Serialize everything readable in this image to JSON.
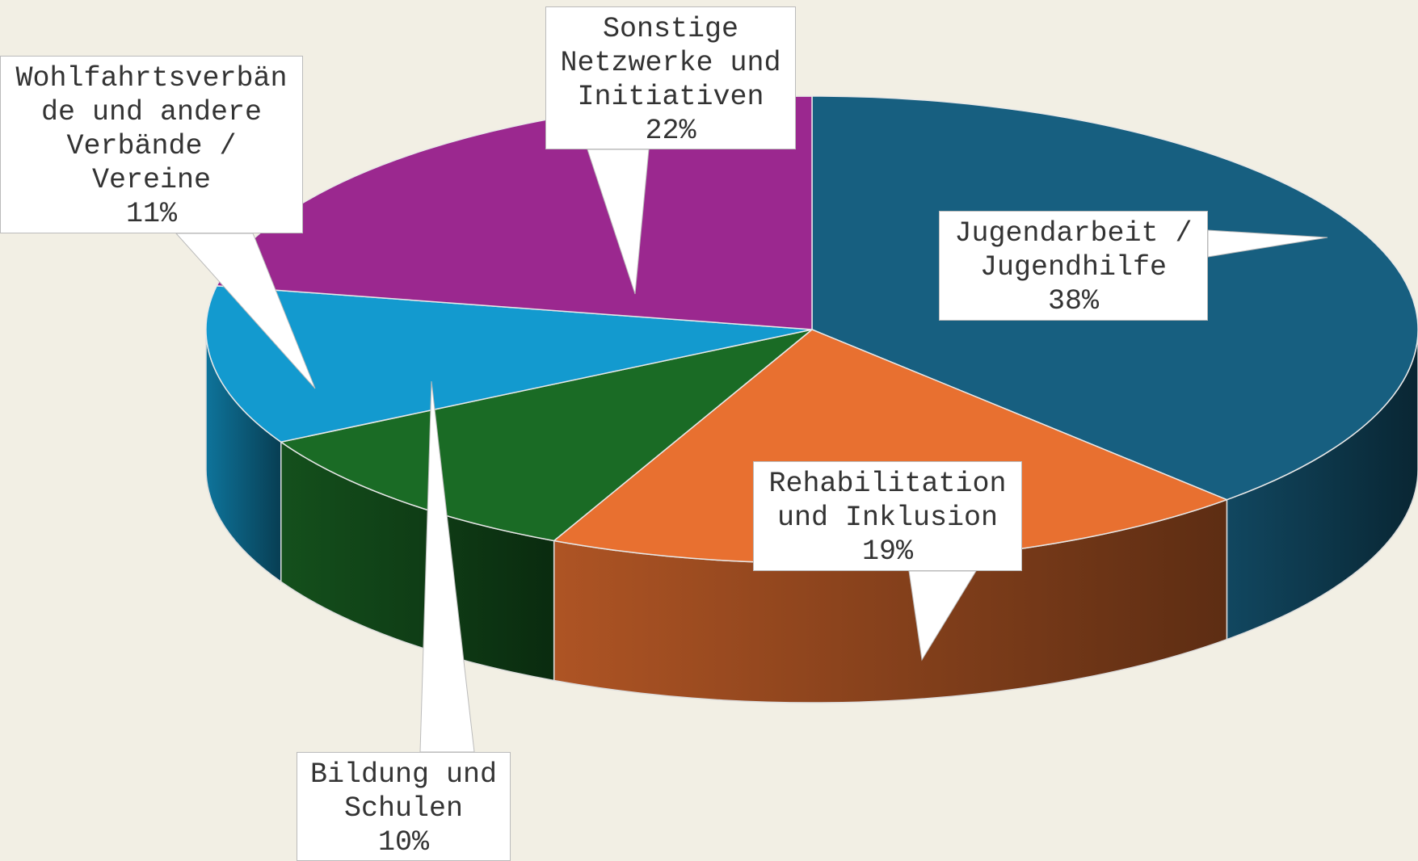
{
  "chart_data": {
    "type": "pie3d",
    "categories": [
      "Jugendarbeit / Jugendhilfe",
      "Rehabilitation und Inklusion",
      "Bildung und Schulen",
      "Wohlfahrtsverbände und andere Verbände / Vereine",
      "Sonstige Netzwerke und Initiativen"
    ],
    "values": [
      38,
      19,
      10,
      11,
      22
    ],
    "value_labels": [
      "38%",
      "19%",
      "10%",
      "11%",
      "22%"
    ],
    "colors": [
      "#175f80",
      "#e87030",
      "#1a6b25",
      "#139acf",
      "#9b288f"
    ]
  }
}
